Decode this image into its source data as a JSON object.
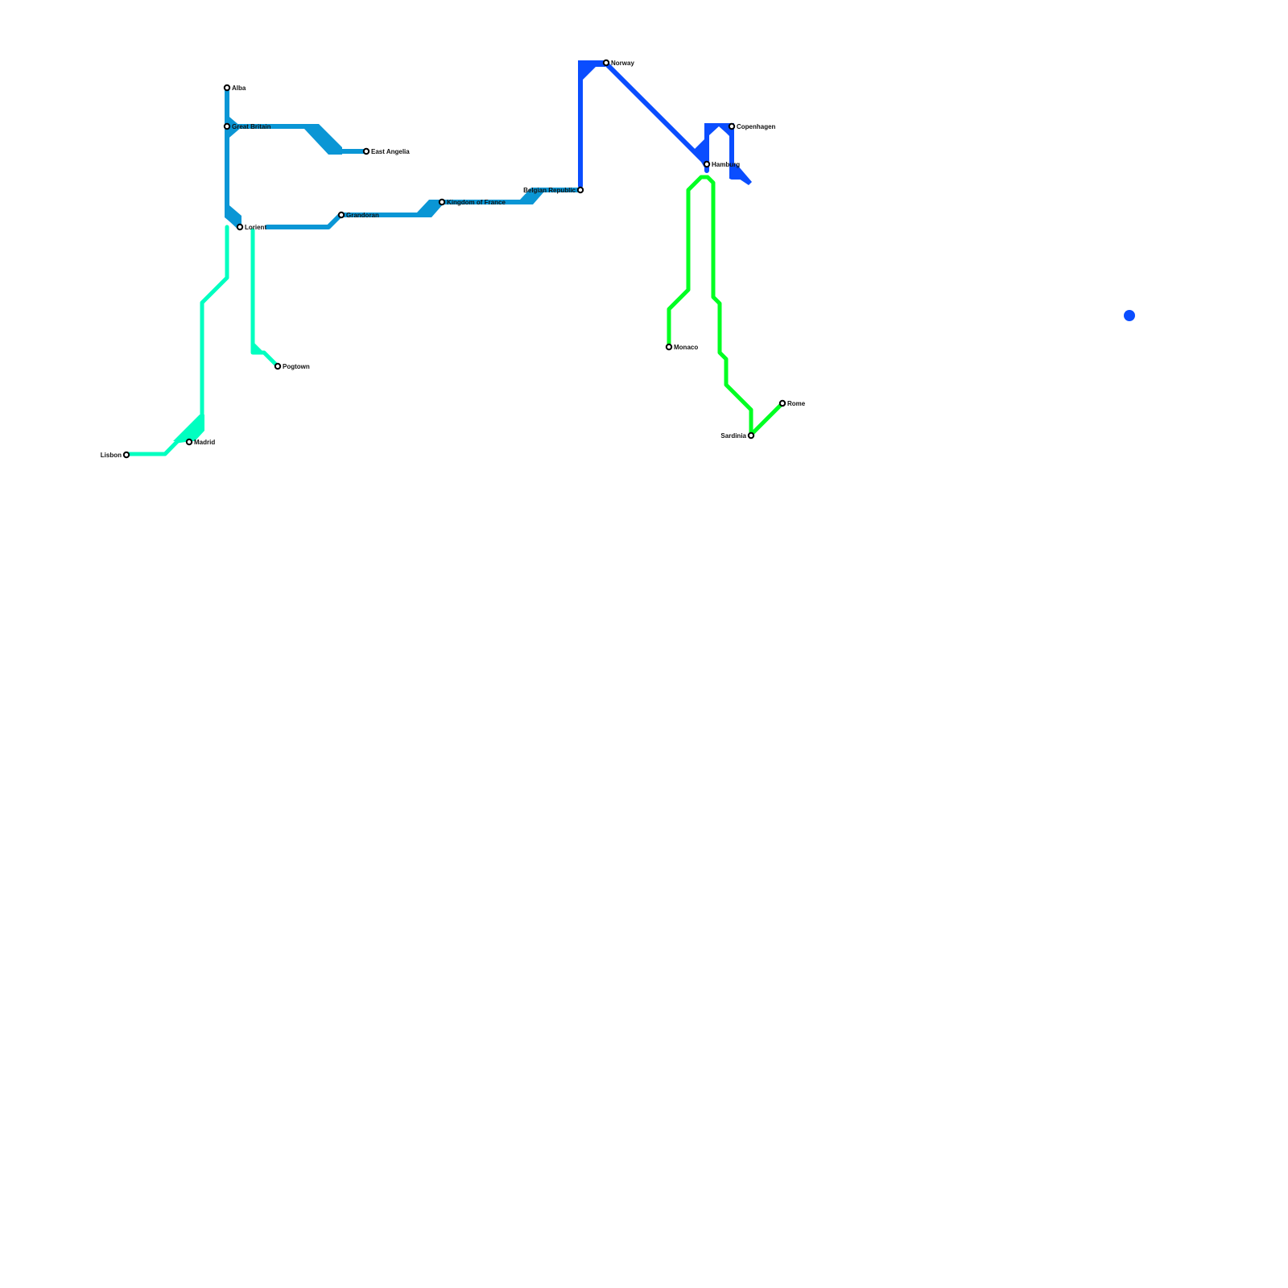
{
  "colors": {
    "west_line": "#0a96d5",
    "north_line": "#0a4dff",
    "south_line": "#00ff22",
    "iberia_line": "#00ffc0"
  },
  "stations": [
    {
      "name": "Alba"
    },
    {
      "name": "Great Britain"
    },
    {
      "name": "East Angelia"
    },
    {
      "name": "Lorient"
    },
    {
      "name": "Grandoran"
    },
    {
      "name": "Kingdom of France"
    },
    {
      "name": "Belgian Republic"
    },
    {
      "name": "Norway"
    },
    {
      "name": "Copenhagen"
    },
    {
      "name": "Hamburg"
    },
    {
      "name": "Monaco"
    },
    {
      "name": "Rome"
    },
    {
      "name": "Sardinia"
    },
    {
      "name": "Pogtown"
    },
    {
      "name": "Madrid"
    },
    {
      "name": "Lisbon"
    }
  ]
}
